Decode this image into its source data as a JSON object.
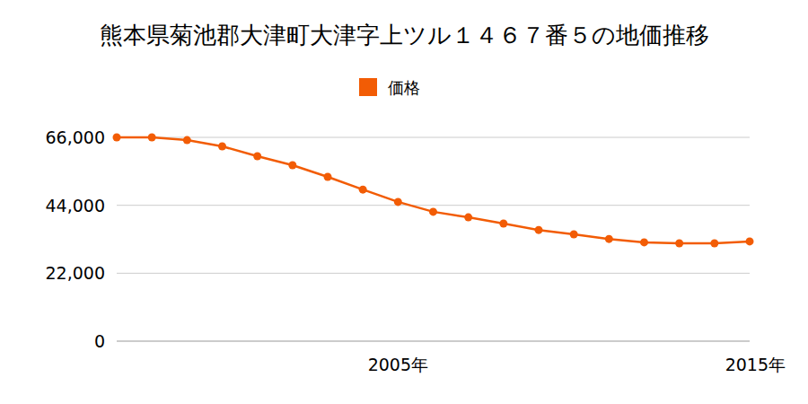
{
  "chart_data": {
    "type": "line",
    "title": "熊本県菊池郡大津町大津字上ツル１４６７番５の地価推移",
    "categories": [
      null,
      null,
      null,
      null,
      null,
      null,
      null,
      null,
      "2005年",
      null,
      null,
      null,
      null,
      null,
      null,
      null,
      null,
      null,
      "2015年"
    ],
    "series": [
      {
        "name": "価格",
        "color": "#f25c05",
        "marker": "circle",
        "values": [
          66000,
          66000,
          65100,
          63100,
          59900,
          57000,
          53200,
          49100,
          45100,
          41900,
          40100,
          38100,
          36000,
          34600,
          33100,
          32000,
          31700,
          31700,
          32300
        ]
      }
    ],
    "ylim": [
      0,
      66000
    ],
    "yticks": [
      0,
      {
        "value": 22000,
        "label": "22,000"
      },
      {
        "value": 44000,
        "label": "44,000"
      },
      {
        "value": 66000,
        "label": "66,000"
      }
    ],
    "grid": true,
    "legend": "top"
  }
}
